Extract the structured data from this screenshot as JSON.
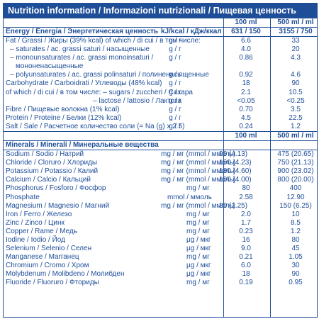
{
  "title": "Nutrition information / Informazioni nutrizionali / Пищевая ценность",
  "energy_section": {
    "col1": "100 ml",
    "col2": "500 ml / ml",
    "header_label": "Energy / Energia / Энергетическая ценность",
    "header_unit": "kJ/kcal / кДж/ккал",
    "header_v1": "631 / 150",
    "header_v2": "3155 / 750"
  },
  "nutrients": [
    {
      "label": "Fat / Grassi / Жиры (39% kcal) of which / di cui / в том числе:",
      "unit": "g / г",
      "v1": "6.6",
      "v2": "33",
      "style": ""
    },
    {
      "label": "– saturates / ac. grassi saturi / насыщенные",
      "unit": "g / г",
      "v1": "4.0",
      "v2": "20",
      "style": "ind"
    },
    {
      "label": "– monounsaturates / ac. grassi monoinsaturi /",
      "label2": "мононенасыщенные",
      "unit": "g / г",
      "v1": "0.86",
      "v2": "4.3",
      "style": "ind double"
    },
    {
      "label": "– polyunsaturates / ac. grassi polinsaturi / полиненасыщенные",
      "unit": "g / г",
      "v1": "0.92",
      "v2": "4.6",
      "style": "ind"
    },
    {
      "label": "Carbohydrate / Carboidrati / Углеводы (48% kcal)",
      "unit": "g / г",
      "v1": "18",
      "v2": "90",
      "style": ""
    },
    {
      "label": "of which / di cui / в том числе: – sugars / zuccheri / Сахара",
      "unit": "g / г",
      "v1": "2.1",
      "v2": "10.5",
      "style": ""
    },
    {
      "label": "– lactose / lattosio / Лактоза",
      "unit": "g / г",
      "v1": "<0.05",
      "v2": "<0.25",
      "style": "ind2"
    },
    {
      "label": "Fibre / Пищевые волокна (1% kcal)",
      "unit": "g / г",
      "v1": "0.70",
      "v2": "3.5",
      "style": ""
    },
    {
      "label": "Protein / Proteine / Белки (12% kcal)",
      "unit": "g / г",
      "v1": "4.5",
      "v2": "22.5",
      "style": ""
    },
    {
      "label": "Salt / Sale / Расчетное количество соли (= Na (g) x 2.5)",
      "unit": "g / г",
      "v1": "0.24",
      "v2": "1.2",
      "style": ""
    }
  ],
  "minerals_section": {
    "col1": "100 ml",
    "col2": "500 ml / ml",
    "header_label": "Minerals / Minerali / Минеральные вещества"
  },
  "minerals": [
    {
      "label": "Sodium / Sodio / Натрий",
      "unit": "mg / мг (mmol / ммоль)",
      "v1": "95 (4.13)",
      "v2": "475 (20.65)"
    },
    {
      "label": "Chloride / Cloruro / Хлориды",
      "unit": "mg / мг (mmol / ммоль)",
      "v1": "150 (4.23)",
      "v2": "750 (21.13)"
    },
    {
      "label": "Potassium / Potassio / Калий",
      "unit": "mg / мг (mmol / ммоль)",
      "v1": "180 (4.60)",
      "v2": "900 (23.02)"
    },
    {
      "label": "Calcium / Calcio / Кальций",
      "unit": "mg / мг (mmol / ммоль)",
      "v1": "160 (4.00)",
      "v2": "800 (20.00)"
    },
    {
      "label": "Phosphorus / Fosforo / Фосфор",
      "unit": "mg / мг",
      "v1": "80",
      "v2": "400"
    },
    {
      "label": "Phosphate",
      "unit": "mmol / ммоль",
      "v1": "2.58",
      "v2": "12.90"
    },
    {
      "label": "Magnesium / Magnesio / Магний",
      "unit": "mg / мг (mmol / ммоль)",
      "v1": "30 (1.25)",
      "v2": "150 (6.25)"
    },
    {
      "label": "Iron / Ferro / Железо",
      "unit": "mg / мг",
      "v1": "2.0",
      "v2": "10"
    },
    {
      "label": "Zinc / Zinco / Цинк",
      "unit": "mg / мг",
      "v1": "1.7",
      "v2": "8.5"
    },
    {
      "label": "Copper / Rame / Медь",
      "unit": "mg / мг",
      "v1": "0.23",
      "v2": "1.2"
    },
    {
      "label": "Iodine / Iodio / Йод",
      "unit": "μg / мкг",
      "v1": "16",
      "v2": "80"
    },
    {
      "label": "Selenium / Selenio / Селен",
      "unit": "μg / мкг",
      "v1": "9.0",
      "v2": "45"
    },
    {
      "label": "Manganese / Marганец",
      "unit": "mg / мг",
      "v1": "0.21",
      "v2": "1.05"
    },
    {
      "label": "Chromium / Cromo / Хром",
      "unit": "μg / мкг",
      "v1": "6.0",
      "v2": "30"
    },
    {
      "label": "Molybdenum / Molibdeno / Молибден",
      "unit": "μg / мкг",
      "v1": "18",
      "v2": "90"
    },
    {
      "label": "Fluoride / Fluoruro / Фториды",
      "unit": "mg / мг",
      "v1": "0.19",
      "v2": "0.95"
    }
  ],
  "colors": {
    "brand": "#1f4e99",
    "background": "#ffffff"
  }
}
